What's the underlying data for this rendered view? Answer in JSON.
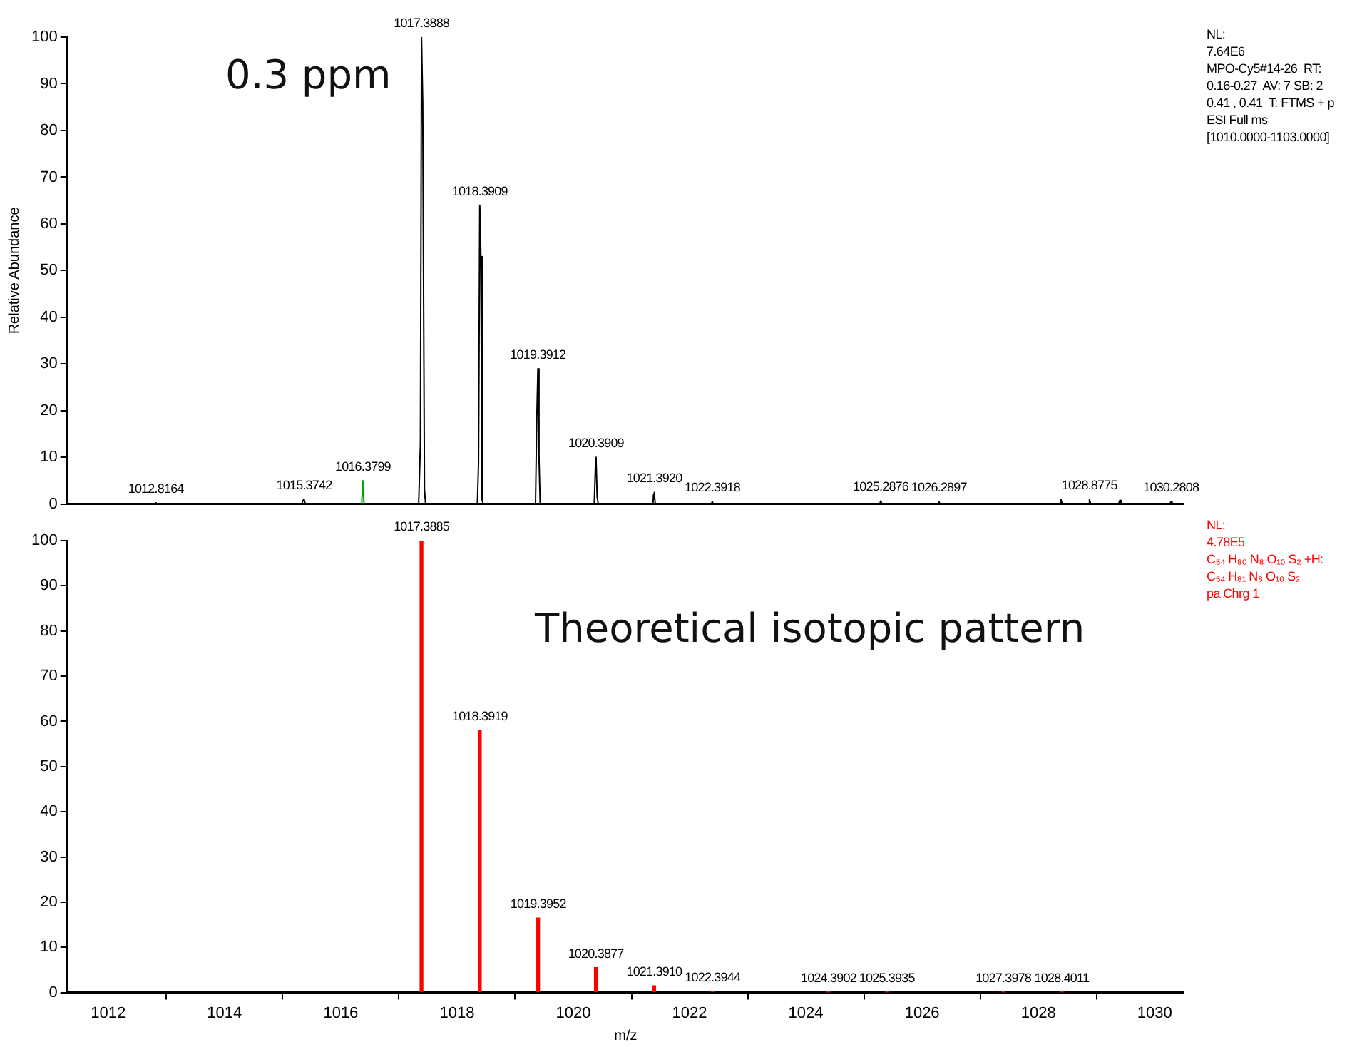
{
  "chart_data": [
    {
      "type": "line",
      "ylabel": "Relative Abundance",
      "xlim": [
        1011.3,
        1030.5
      ],
      "ylim": [
        0,
        100
      ],
      "yticks": [
        0,
        10,
        20,
        30,
        40,
        50,
        60,
        70,
        80,
        90,
        100
      ],
      "tick_labels": "y",
      "grid": false,
      "legend": false,
      "marker": "none",
      "line_style": "solid",
      "annotations": [
        "0.3 ppm",
        "NL:\n7.64E6\nMPO-Cy5#14-26  RT:\n0.16-0.27  AV: 7 SB: 2\n0.41 , 0.41  T: FTMS + p\nESI Full ms\n[1010.0000-1103.0000]",
        {
          "text": "1012.8164",
          "x": 1012.82,
          "y": 0.3
        },
        {
          "text": "1015.3742",
          "x": 1015.37,
          "y": 1
        },
        {
          "text": "1016.3799",
          "x": 1016.38,
          "y": 5
        },
        {
          "text": "1017.3888",
          "x": 1017.389,
          "y": 100
        },
        {
          "text": "1018.3909",
          "x": 1018.391,
          "y": 64
        },
        {
          "text": "1019.3912",
          "x": 1019.391,
          "y": 29
        },
        {
          "text": "1020.3909",
          "x": 1020.391,
          "y": 10
        },
        {
          "text": "1021.3920",
          "x": 1021.392,
          "y": 2.5
        },
        {
          "text": "1022.3918",
          "x": 1022.392,
          "y": 0.5
        },
        {
          "text": "1025.2876",
          "x": 1025.288,
          "y": 0.7
        },
        {
          "text": "1026.2897",
          "x": 1026.29,
          "y": 0.5
        },
        {
          "text": "1028.8775",
          "x": 1028.878,
          "y": 1
        },
        {
          "text": "1030.2808",
          "x": 1030.281,
          "y": 0.5
        }
      ],
      "series": [
        {
          "color": "#000000",
          "x": [
            1012.8,
            1012.82,
            1012.84,
            1015.33,
            1015.35,
            1015.37,
            1015.39,
            1017.34,
            1017.37,
            1017.389,
            1017.41,
            1017.44,
            1017.46,
            1018.35,
            1018.37,
            1018.391,
            1018.41,
            1018.43,
            1018.45,
            1019.35,
            1019.37,
            1019.391,
            1019.41,
            1019.43,
            1020.36,
            1020.38,
            1020.391,
            1020.41,
            1020.43,
            1021.37,
            1021.38,
            1021.392,
            1021.41,
            1022.37,
            1022.392,
            1022.41,
            1025.27,
            1025.288,
            1025.31,
            1026.27,
            1026.29,
            1026.31,
            1028.37,
            1028.39,
            1028.41,
            1028.86,
            1028.878,
            1028.9,
            1029.38,
            1029.4,
            1029.42,
            1030.26,
            1030.281,
            1030.3
          ],
          "values": [
            0,
            0.3,
            0,
            0,
            0.8,
            1,
            0,
            0,
            13,
            100,
            86,
            3,
            0,
            0,
            9,
            64,
            53,
            1,
            0,
            0,
            17,
            29,
            10,
            0,
            0,
            8,
            10,
            1.5,
            0,
            0,
            2,
            2.5,
            0,
            0,
            0.5,
            0,
            0,
            0.7,
            0,
            0,
            0.5,
            0,
            0,
            1,
            0,
            0,
            1,
            0,
            0,
            0.8,
            0,
            0,
            0.5,
            0
          ]
        },
        {
          "color": "#00a000",
          "x": [
            1016.36,
            1016.38,
            1016.4
          ],
          "values": [
            0,
            5,
            0
          ]
        }
      ]
    },
    {
      "type": "bar",
      "xlabel": "m/z",
      "xlim": [
        1011.3,
        1030.5
      ],
      "xticks": [
        1012,
        1014,
        1016,
        1018,
        1020,
        1022,
        1024,
        1026,
        1028,
        1030
      ],
      "ylim": [
        0,
        100
      ],
      "yticks": [
        0,
        10,
        20,
        30,
        40,
        50,
        60,
        70,
        80,
        90,
        100
      ],
      "grid": false,
      "legend": false,
      "annotations": [
        "Theoretical isotopic pattern",
        "NL:\n4.78E5\nC₅₄ H₈₀ N₈ O₁₀ S₂ +H:\nC₅₄ H₈₁ N₈ O₁₀ S₂\npa Chrg 1",
        {
          "text": "1017.3885",
          "x": 1017.3885,
          "y": 100
        },
        {
          "text": "1018.3919",
          "x": 1018.3919,
          "y": 58
        },
        {
          "text": "1019.3952",
          "x": 1019.3952,
          "y": 16.5
        },
        {
          "text": "1020.3877",
          "x": 1020.3877,
          "y": 5.5
        },
        {
          "text": "1021.3910",
          "x": 1021.391,
          "y": 1.5
        },
        {
          "text": "1022.3944",
          "x": 1022.3944,
          "y": 0.3
        },
        {
          "text": "1024.3902",
          "x": 1024.3902,
          "y": 0.1
        },
        {
          "text": "1025.3935",
          "x": 1025.3935,
          "y": 0.1
        },
        {
          "text": "1027.3978",
          "x": 1027.3978,
          "y": 0.1
        },
        {
          "text": "1028.4011",
          "x": 1028.4011,
          "y": 0.1
        }
      ],
      "series": [
        {
          "color": "#ff0000",
          "x": [
            1017.3885,
            1018.3919,
            1019.3952,
            1020.3877,
            1021.391,
            1022.3944,
            1024.3902,
            1025.3935,
            1027.3978,
            1028.4011
          ],
          "values": [
            100,
            58,
            16.5,
            5.5,
            1.5,
            0.3,
            0.1,
            0.1,
            0.1,
            0.1
          ]
        }
      ]
    }
  ]
}
